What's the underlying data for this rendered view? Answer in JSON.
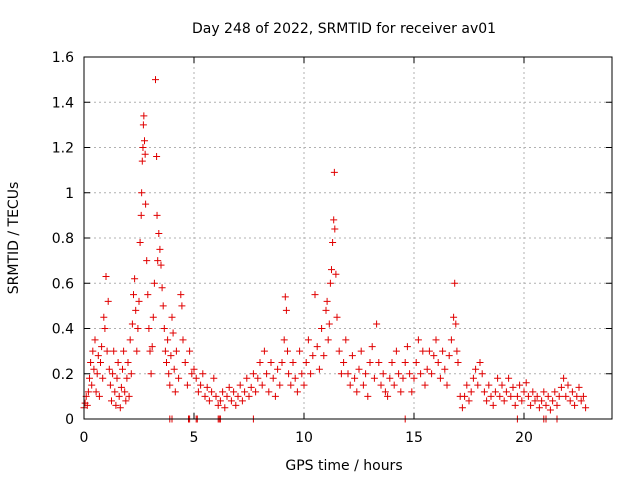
{
  "chart_data": {
    "type": "scatter",
    "title": "Day 248 of 2022, SRMTID for receiver av01",
    "xlabel": "GPS time / hours",
    "ylabel": "SRMTID / TECUs",
    "xlim": [
      0,
      24
    ],
    "ylim": [
      0,
      1.6
    ],
    "xticks": [
      0,
      5,
      10,
      15,
      20
    ],
    "xtick_labels": [
      "0",
      "5",
      "10",
      "15",
      "20"
    ],
    "yticks": [
      0,
      0.2,
      0.4,
      0.6,
      0.8,
      1.0,
      1.2,
      1.4,
      1.6
    ],
    "ytick_labels": [
      "0",
      "0.2",
      "0.4",
      "0.6",
      "0.8",
      "1",
      "1.2",
      "1.4",
      "1.6"
    ],
    "grid": true,
    "marker": "plus",
    "color": "#e00000",
    "series": [
      {
        "name": "SRMTID",
        "points": [
          [
            0.0,
            0.05
          ],
          [
            0.05,
            0.07
          ],
          [
            0.1,
            0.1
          ],
          [
            0.15,
            0.06
          ],
          [
            0.2,
            0.12
          ],
          [
            0.25,
            0.18
          ],
          [
            0.3,
            0.25
          ],
          [
            0.35,
            0.15
          ],
          [
            0.4,
            0.3
          ],
          [
            0.45,
            0.22
          ],
          [
            0.5,
            0.35
          ],
          [
            0.55,
            0.12
          ],
          [
            0.6,
            0.2
          ],
          [
            0.65,
            0.28
          ],
          [
            0.7,
            0.1
          ],
          [
            0.75,
            0.25
          ],
          [
            0.8,
            0.32
          ],
          [
            0.85,
            0.18
          ],
          [
            0.9,
            0.45
          ],
          [
            0.95,
            0.4
          ],
          [
            1.0,
            0.63
          ],
          [
            1.05,
            0.3
          ],
          [
            1.1,
            0.52
          ],
          [
            1.15,
            0.22
          ],
          [
            1.2,
            0.15
          ],
          [
            1.25,
            0.08
          ],
          [
            1.3,
            0.2
          ],
          [
            1.35,
            0.3
          ],
          [
            1.4,
            0.12
          ],
          [
            1.45,
            0.06
          ],
          [
            1.5,
            0.18
          ],
          [
            1.55,
            0.25
          ],
          [
            1.6,
            0.1
          ],
          [
            1.65,
            0.05
          ],
          [
            1.7,
            0.14
          ],
          [
            1.75,
            0.22
          ],
          [
            1.8,
            0.3
          ],
          [
            1.85,
            0.12
          ],
          [
            1.9,
            0.08
          ],
          [
            1.95,
            0.18
          ],
          [
            2.0,
            0.25
          ],
          [
            2.05,
            0.1
          ],
          [
            2.1,
            0.35
          ],
          [
            2.15,
            0.2
          ],
          [
            2.2,
            0.42
          ],
          [
            2.25,
            0.55
          ],
          [
            2.3,
            0.62
          ],
          [
            2.35,
            0.48
          ],
          [
            2.4,
            0.3
          ],
          [
            2.45,
            0.4
          ],
          [
            2.5,
            0.52
          ],
          [
            2.55,
            0.78
          ],
          [
            2.6,
            0.9
          ],
          [
            2.62,
            1.0
          ],
          [
            2.65,
            1.14
          ],
          [
            2.68,
            1.2
          ],
          [
            2.7,
            1.3
          ],
          [
            2.72,
            1.34
          ],
          [
            2.75,
            1.23
          ],
          [
            2.78,
            1.17
          ],
          [
            2.8,
            0.95
          ],
          [
            2.85,
            0.7
          ],
          [
            2.9,
            0.55
          ],
          [
            2.95,
            0.4
          ],
          [
            3.0,
            0.3
          ],
          [
            3.05,
            0.2
          ],
          [
            3.1,
            0.32
          ],
          [
            3.15,
            0.45
          ],
          [
            3.2,
            0.6
          ],
          [
            3.25,
            1.5
          ],
          [
            3.3,
            1.16
          ],
          [
            3.32,
            0.9
          ],
          [
            3.35,
            0.7
          ],
          [
            3.4,
            0.82
          ],
          [
            3.45,
            0.75
          ],
          [
            3.5,
            0.68
          ],
          [
            3.55,
            0.58
          ],
          [
            3.6,
            0.5
          ],
          [
            3.65,
            0.4
          ],
          [
            3.7,
            0.3
          ],
          [
            3.75,
            0.25
          ],
          [
            3.8,
            0.35
          ],
          [
            3.85,
            0.2
          ],
          [
            3.9,
            0.15
          ],
          [
            3.95,
            0.28
          ],
          [
            4.0,
            0.45
          ],
          [
            4.05,
            0.38
          ],
          [
            4.1,
            0.22
          ],
          [
            4.15,
            0.12
          ],
          [
            4.2,
            0.3
          ],
          [
            4.3,
            0.18
          ],
          [
            4.4,
            0.55
          ],
          [
            4.45,
            0.5
          ],
          [
            4.5,
            0.35
          ],
          [
            4.6,
            0.25
          ],
          [
            4.7,
            0.15
          ],
          [
            4.8,
            0.3
          ],
          [
            4.9,
            0.2
          ],
          [
            5.0,
            0.22
          ],
          [
            5.1,
            0.18
          ],
          [
            5.2,
            0.12
          ],
          [
            5.3,
            0.15
          ],
          [
            5.4,
            0.2
          ],
          [
            5.5,
            0.1
          ],
          [
            5.6,
            0.14
          ],
          [
            5.7,
            0.08
          ],
          [
            5.8,
            0.12
          ],
          [
            5.9,
            0.18
          ],
          [
            6.0,
            0.1
          ],
          [
            6.1,
            0.06
          ],
          [
            6.2,
            0.08
          ],
          [
            6.3,
            0.12
          ],
          [
            6.4,
            0.05
          ],
          [
            6.5,
            0.1
          ],
          [
            6.6,
            0.14
          ],
          [
            6.7,
            0.08
          ],
          [
            6.8,
            0.12
          ],
          [
            6.9,
            0.06
          ],
          [
            7.0,
            0.1
          ],
          [
            7.1,
            0.15
          ],
          [
            7.2,
            0.08
          ],
          [
            7.3,
            0.12
          ],
          [
            7.4,
            0.18
          ],
          [
            7.5,
            0.1
          ],
          [
            7.6,
            0.14
          ],
          [
            7.7,
            0.2
          ],
          [
            7.8,
            0.12
          ],
          [
            7.9,
            0.18
          ],
          [
            8.0,
            0.25
          ],
          [
            8.1,
            0.15
          ],
          [
            8.2,
            0.3
          ],
          [
            8.3,
            0.2
          ],
          [
            8.4,
            0.12
          ],
          [
            8.5,
            0.25
          ],
          [
            8.6,
            0.18
          ],
          [
            8.7,
            0.1
          ],
          [
            8.8,
            0.22
          ],
          [
            8.9,
            0.15
          ],
          [
            9.0,
            0.25
          ],
          [
            9.1,
            0.35
          ],
          [
            9.15,
            0.54
          ],
          [
            9.2,
            0.48
          ],
          [
            9.25,
            0.3
          ],
          [
            9.3,
            0.2
          ],
          [
            9.4,
            0.15
          ],
          [
            9.5,
            0.25
          ],
          [
            9.6,
            0.18
          ],
          [
            9.7,
            0.12
          ],
          [
            9.8,
            0.3
          ],
          [
            9.9,
            0.2
          ],
          [
            10.0,
            0.15
          ],
          [
            10.1,
            0.25
          ],
          [
            10.2,
            0.35
          ],
          [
            10.3,
            0.2
          ],
          [
            10.4,
            0.28
          ],
          [
            10.5,
            0.55
          ],
          [
            10.6,
            0.32
          ],
          [
            10.7,
            0.22
          ],
          [
            10.8,
            0.4
          ],
          [
            10.9,
            0.28
          ],
          [
            11.0,
            0.48
          ],
          [
            11.05,
            0.52
          ],
          [
            11.1,
            0.35
          ],
          [
            11.15,
            0.42
          ],
          [
            11.2,
            0.6
          ],
          [
            11.25,
            0.66
          ],
          [
            11.3,
            0.78
          ],
          [
            11.35,
            0.88
          ],
          [
            11.38,
            1.09
          ],
          [
            11.4,
            0.84
          ],
          [
            11.45,
            0.64
          ],
          [
            11.5,
            0.45
          ],
          [
            11.6,
            0.3
          ],
          [
            11.7,
            0.2
          ],
          [
            11.8,
            0.25
          ],
          [
            11.9,
            0.35
          ],
          [
            12.0,
            0.2
          ],
          [
            12.1,
            0.15
          ],
          [
            12.2,
            0.28
          ],
          [
            12.3,
            0.18
          ],
          [
            12.4,
            0.12
          ],
          [
            12.5,
            0.22
          ],
          [
            12.6,
            0.3
          ],
          [
            12.7,
            0.15
          ],
          [
            12.8,
            0.2
          ],
          [
            12.9,
            0.1
          ],
          [
            13.0,
            0.25
          ],
          [
            13.1,
            0.32
          ],
          [
            13.2,
            0.18
          ],
          [
            13.3,
            0.42
          ],
          [
            13.4,
            0.25
          ],
          [
            13.5,
            0.15
          ],
          [
            13.6,
            0.2
          ],
          [
            13.7,
            0.12
          ],
          [
            13.8,
            0.1
          ],
          [
            13.9,
            0.18
          ],
          [
            14.0,
            0.25
          ],
          [
            14.1,
            0.15
          ],
          [
            14.2,
            0.3
          ],
          [
            14.3,
            0.2
          ],
          [
            14.4,
            0.12
          ],
          [
            14.5,
            0.18
          ],
          [
            14.6,
            0.25
          ],
          [
            14.7,
            0.32
          ],
          [
            14.8,
            0.2
          ],
          [
            14.9,
            0.12
          ],
          [
            15.0,
            0.18
          ],
          [
            15.1,
            0.25
          ],
          [
            15.2,
            0.35
          ],
          [
            15.3,
            0.2
          ],
          [
            15.4,
            0.3
          ],
          [
            15.5,
            0.15
          ],
          [
            15.6,
            0.22
          ],
          [
            15.7,
            0.3
          ],
          [
            15.8,
            0.2
          ],
          [
            15.9,
            0.28
          ],
          [
            16.0,
            0.35
          ],
          [
            16.1,
            0.25
          ],
          [
            16.2,
            0.18
          ],
          [
            16.3,
            0.3
          ],
          [
            16.4,
            0.22
          ],
          [
            16.5,
            0.15
          ],
          [
            16.6,
            0.28
          ],
          [
            16.7,
            0.35
          ],
          [
            16.8,
            0.45
          ],
          [
            16.85,
            0.6
          ],
          [
            16.9,
            0.42
          ],
          [
            16.95,
            0.3
          ],
          [
            17.0,
            0.25
          ],
          [
            17.1,
            0.1
          ],
          [
            17.2,
            0.05
          ],
          [
            17.3,
            0.1
          ],
          [
            17.4,
            0.15
          ],
          [
            17.5,
            0.08
          ],
          [
            17.6,
            0.12
          ],
          [
            17.7,
            0.18
          ],
          [
            17.8,
            0.22
          ],
          [
            17.9,
            0.15
          ],
          [
            18.0,
            0.25
          ],
          [
            18.1,
            0.2
          ],
          [
            18.2,
            0.12
          ],
          [
            18.3,
            0.08
          ],
          [
            18.4,
            0.15
          ],
          [
            18.5,
            0.1
          ],
          [
            18.6,
            0.06
          ],
          [
            18.7,
            0.12
          ],
          [
            18.8,
            0.18
          ],
          [
            18.9,
            0.1
          ],
          [
            19.0,
            0.15
          ],
          [
            19.1,
            0.08
          ],
          [
            19.2,
            0.12
          ],
          [
            19.3,
            0.18
          ],
          [
            19.4,
            0.1
          ],
          [
            19.5,
            0.14
          ],
          [
            19.6,
            0.06
          ],
          [
            19.7,
            0.1
          ],
          [
            19.8,
            0.15
          ],
          [
            19.9,
            0.08
          ],
          [
            20.0,
            0.12
          ],
          [
            20.1,
            0.16
          ],
          [
            20.2,
            0.1
          ],
          [
            20.3,
            0.06
          ],
          [
            20.4,
            0.12
          ],
          [
            20.5,
            0.08
          ],
          [
            20.6,
            0.1
          ],
          [
            20.7,
            0.05
          ],
          [
            20.8,
            0.08
          ],
          [
            20.9,
            0.12
          ],
          [
            21.0,
            0.06
          ],
          [
            21.1,
            0.1
          ],
          [
            21.2,
            0.04
          ],
          [
            21.3,
            0.08
          ],
          [
            21.4,
            0.12
          ],
          [
            21.5,
            0.06
          ],
          [
            21.6,
            0.1
          ],
          [
            21.7,
            0.14
          ],
          [
            21.8,
            0.18
          ],
          [
            21.9,
            0.1
          ],
          [
            22.0,
            0.15
          ],
          [
            22.1,
            0.08
          ],
          [
            22.2,
            0.12
          ],
          [
            22.3,
            0.06
          ],
          [
            22.4,
            0.1
          ],
          [
            22.5,
            0.14
          ],
          [
            22.6,
            0.08
          ],
          [
            22.7,
            0.1
          ],
          [
            22.8,
            0.05
          ],
          [
            3.9,
            0.0
          ],
          [
            4.0,
            0.0
          ],
          [
            4.75,
            0.0
          ],
          [
            4.8,
            0.0
          ],
          [
            5.1,
            0.0
          ],
          [
            5.15,
            0.0
          ],
          [
            6.1,
            0.0
          ],
          [
            6.15,
            0.0
          ],
          [
            6.2,
            0.0
          ],
          [
            7.7,
            0.0
          ],
          [
            14.6,
            0.0
          ],
          [
            19.7,
            0.0
          ],
          [
            20.9,
            0.0
          ],
          [
            21.0,
            0.0
          ],
          [
            21.5,
            0.0
          ]
        ]
      }
    ]
  }
}
